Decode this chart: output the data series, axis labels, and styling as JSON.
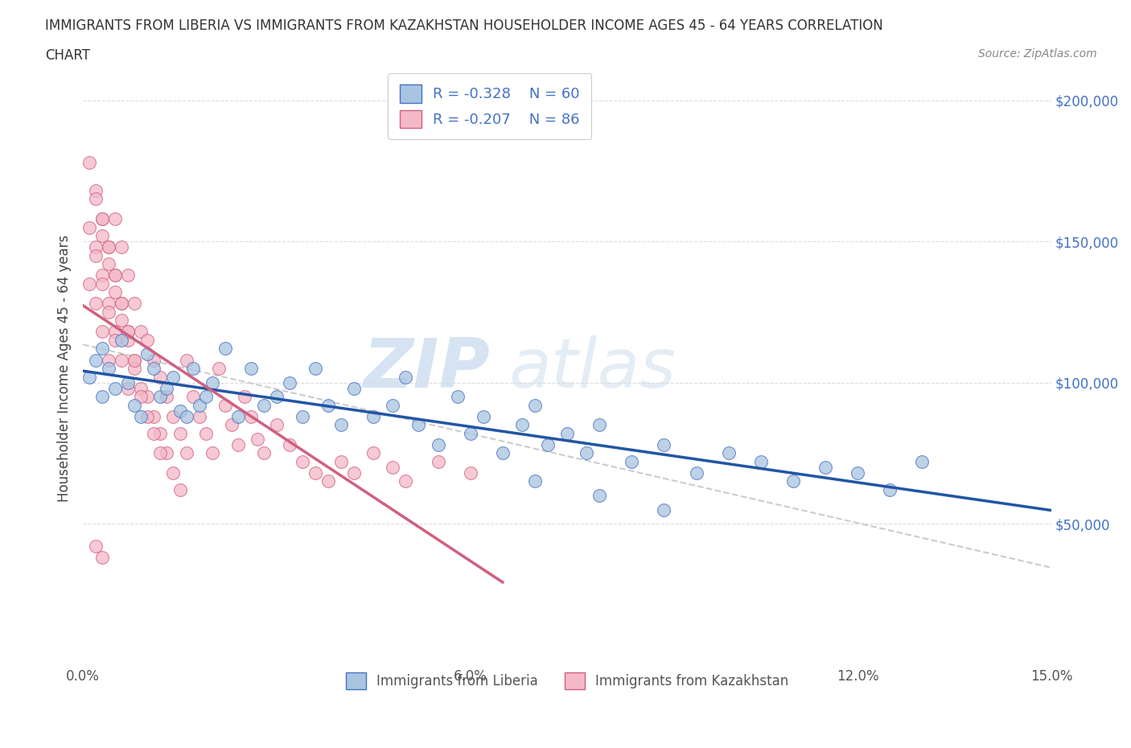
{
  "title_line1": "IMMIGRANTS FROM LIBERIA VS IMMIGRANTS FROM KAZAKHSTAN HOUSEHOLDER INCOME AGES 45 - 64 YEARS CORRELATION",
  "title_line2": "CHART",
  "source_text": "Source: ZipAtlas.com",
  "ylabel": "Householder Income Ages 45 - 64 years",
  "xlim": [
    0.0,
    0.15
  ],
  "ylim": [
    0,
    210000
  ],
  "yticks": [
    0,
    50000,
    100000,
    150000,
    200000
  ],
  "ytick_labels": [
    "",
    "$50,000",
    "$100,000",
    "$150,000",
    "$200,000"
  ],
  "xticks": [
    0.0,
    0.03,
    0.06,
    0.09,
    0.12,
    0.15
  ],
  "xtick_labels": [
    "0.0%",
    "",
    "6.0%",
    "",
    "12.0%",
    "15.0%"
  ],
  "liberia_color": "#a8c4e0",
  "liberia_edge_color": "#4472c4",
  "liberia_line_color": "#2255a4",
  "kazakhstan_color": "#f4b8c8",
  "kazakhstan_edge_color": "#d06080",
  "kazakhstan_line_color": "#d06080",
  "dash_line_color": "#cccccc",
  "legend_R_liberia": "R = -0.328",
  "legend_N_liberia": "N = 60",
  "legend_R_kazakhstan": "R = -0.207",
  "legend_N_kazakhstan": "N = 86",
  "watermark_zip": "ZIP",
  "watermark_atlas": "atlas",
  "background_color": "#ffffff",
  "liberia_x": [
    0.001,
    0.002,
    0.003,
    0.003,
    0.004,
    0.005,
    0.006,
    0.007,
    0.008,
    0.009,
    0.01,
    0.011,
    0.012,
    0.013,
    0.014,
    0.015,
    0.016,
    0.017,
    0.018,
    0.019,
    0.02,
    0.022,
    0.024,
    0.026,
    0.028,
    0.03,
    0.032,
    0.034,
    0.036,
    0.038,
    0.04,
    0.042,
    0.045,
    0.048,
    0.05,
    0.052,
    0.055,
    0.058,
    0.06,
    0.062,
    0.065,
    0.068,
    0.07,
    0.072,
    0.075,
    0.078,
    0.08,
    0.085,
    0.09,
    0.095,
    0.1,
    0.105,
    0.11,
    0.115,
    0.12,
    0.125,
    0.13,
    0.07,
    0.08,
    0.09
  ],
  "liberia_y": [
    102000,
    108000,
    95000,
    112000,
    105000,
    98000,
    115000,
    100000,
    92000,
    88000,
    110000,
    105000,
    95000,
    98000,
    102000,
    90000,
    88000,
    105000,
    92000,
    95000,
    100000,
    112000,
    88000,
    105000,
    92000,
    95000,
    100000,
    88000,
    105000,
    92000,
    85000,
    98000,
    88000,
    92000,
    102000,
    85000,
    78000,
    95000,
    82000,
    88000,
    75000,
    85000,
    92000,
    78000,
    82000,
    75000,
    85000,
    72000,
    78000,
    68000,
    75000,
    72000,
    65000,
    70000,
    68000,
    62000,
    72000,
    65000,
    60000,
    55000
  ],
  "kazakhstan_x": [
    0.001,
    0.001,
    0.001,
    0.002,
    0.002,
    0.002,
    0.003,
    0.003,
    0.003,
    0.004,
    0.004,
    0.004,
    0.005,
    0.005,
    0.005,
    0.006,
    0.006,
    0.006,
    0.007,
    0.007,
    0.007,
    0.008,
    0.008,
    0.009,
    0.009,
    0.01,
    0.01,
    0.011,
    0.011,
    0.012,
    0.012,
    0.013,
    0.013,
    0.014,
    0.014,
    0.015,
    0.015,
    0.016,
    0.016,
    0.017,
    0.018,
    0.019,
    0.02,
    0.021,
    0.022,
    0.023,
    0.024,
    0.025,
    0.026,
    0.027,
    0.028,
    0.03,
    0.032,
    0.034,
    0.036,
    0.038,
    0.04,
    0.042,
    0.045,
    0.048,
    0.05,
    0.055,
    0.06,
    0.002,
    0.003,
    0.004,
    0.005,
    0.006,
    0.007,
    0.008,
    0.009,
    0.01,
    0.011,
    0.012,
    0.002,
    0.003,
    0.004,
    0.005,
    0.003,
    0.004,
    0.005,
    0.006,
    0.007,
    0.008,
    0.002,
    0.003
  ],
  "kazakhstan_y": [
    178000,
    155000,
    135000,
    168000,
    148000,
    128000,
    158000,
    138000,
    118000,
    148000,
    128000,
    108000,
    158000,
    138000,
    118000,
    148000,
    128000,
    108000,
    138000,
    118000,
    98000,
    128000,
    108000,
    118000,
    98000,
    115000,
    95000,
    108000,
    88000,
    102000,
    82000,
    95000,
    75000,
    88000,
    68000,
    82000,
    62000,
    75000,
    108000,
    95000,
    88000,
    82000,
    75000,
    105000,
    92000,
    85000,
    78000,
    95000,
    88000,
    80000,
    75000,
    85000,
    78000,
    72000,
    68000,
    65000,
    72000,
    68000,
    75000,
    70000,
    65000,
    72000,
    68000,
    165000,
    152000,
    142000,
    132000,
    122000,
    115000,
    105000,
    95000,
    88000,
    82000,
    75000,
    145000,
    135000,
    125000,
    115000,
    158000,
    148000,
    138000,
    128000,
    118000,
    108000,
    42000,
    38000
  ]
}
